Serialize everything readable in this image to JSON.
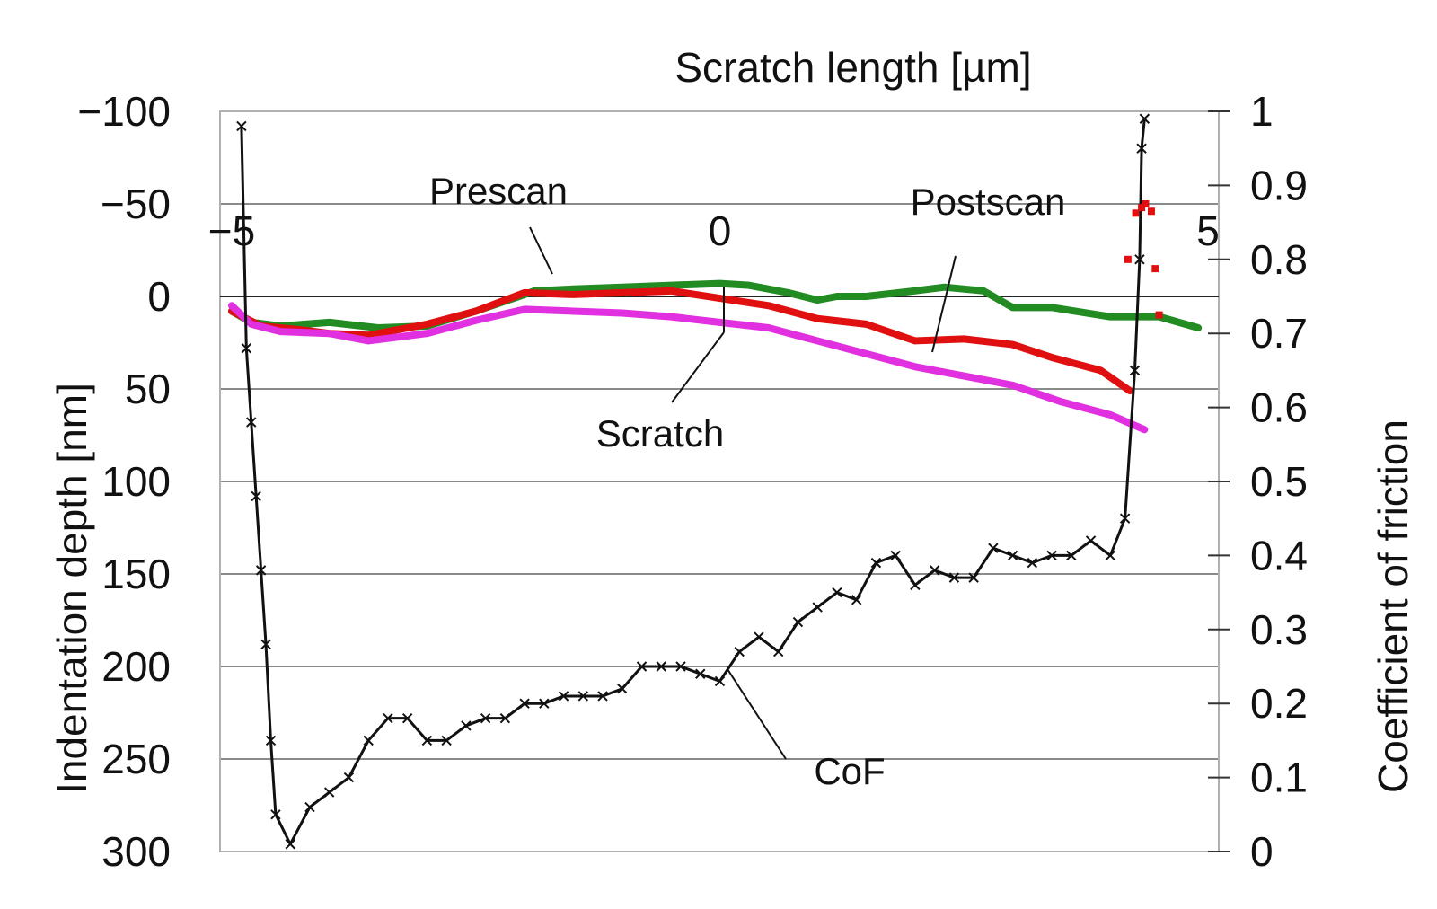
{
  "chart_data": {
    "type": "line",
    "title": "",
    "xlabel": "Scratch length [µm]",
    "ylabel": "Indentation depth [nm]",
    "y2label": "Coefficient of friction",
    "xlim": [
      -5,
      5
    ],
    "ylim": [
      -100,
      300
    ],
    "ylim_inverted": true,
    "y2lim": [
      0,
      1
    ],
    "x_ticks": [
      -5,
      0,
      5
    ],
    "x_tick_labels": [
      "−5",
      "0",
      "5"
    ],
    "y_ticks": [
      -100,
      -50,
      0,
      50,
      100,
      150,
      200,
      250,
      300
    ],
    "y_tick_labels": [
      "−100",
      "−50",
      "0",
      "50",
      "100",
      "150",
      "200",
      "250",
      "300"
    ],
    "y2_ticks": [
      0,
      0.1,
      0.2,
      0.3,
      0.4,
      0.5,
      0.6,
      0.7,
      0.8,
      0.9,
      1
    ],
    "y2_tick_labels": [
      "0",
      "0.1",
      "0.2",
      "0.3",
      "0.4",
      "0.5",
      "0.6",
      "0.7",
      "0.8",
      "0.9",
      "1"
    ],
    "grid": true,
    "series": [
      {
        "name": "Prescan",
        "axis": "left",
        "color": "#228B22",
        "x": [
          -5.0,
          -4.8,
          -4.5,
          -4.0,
          -3.5,
          -3.0,
          -2.5,
          -2.0,
          -1.9,
          -1.5,
          -1.0,
          -0.5,
          0.0,
          0.3,
          0.7,
          1.0,
          1.2,
          1.5,
          2.0,
          2.3,
          2.7,
          3.0,
          3.4,
          4.0,
          4.5,
          4.9
        ],
        "y": [
          8,
          14,
          16,
          14,
          17,
          16,
          8,
          -1,
          -3,
          -4,
          -5,
          -6,
          -7,
          -6,
          -2,
          2,
          0,
          0,
          -3,
          -5,
          -3,
          6,
          6,
          11,
          11,
          17
        ]
      },
      {
        "name": "Scratch",
        "axis": "left",
        "color": "#E01010",
        "x": [
          -5.0,
          -4.7,
          -4.3,
          -4.0,
          -3.6,
          -3.0,
          -2.5,
          -2.0,
          -1.5,
          -1.0,
          -0.5,
          0.0,
          0.5,
          1.0,
          1.5,
          2.0,
          2.5,
          3.0,
          3.4,
          3.9,
          4.2
        ],
        "y": [
          8,
          16,
          18,
          20,
          21,
          15,
          8,
          -2,
          -1,
          -2,
          -3,
          1,
          5,
          12,
          15,
          24,
          23,
          26,
          33,
          40,
          51
        ]
      },
      {
        "name": "Postscan",
        "axis": "left",
        "color": "#E030E0",
        "x": [
          -5.0,
          -4.8,
          -4.5,
          -4.0,
          -3.6,
          -3.0,
          -2.5,
          -2.0,
          -1.5,
          -1.0,
          -0.5,
          0.0,
          0.5,
          1.0,
          1.5,
          2.0,
          2.5,
          3.0,
          3.5,
          4.0,
          4.35
        ],
        "y": [
          5,
          15,
          19,
          20,
          24,
          20,
          13,
          7,
          8,
          9,
          11,
          14,
          17,
          24,
          31,
          38,
          43,
          48,
          57,
          64,
          72
        ]
      },
      {
        "name": "CoF",
        "axis": "right",
        "color": "#111111",
        "marker": "x",
        "x": [
          -4.9,
          -4.85,
          -4.8,
          -4.75,
          -4.7,
          -4.65,
          -4.6,
          -4.55,
          -4.4,
          -4.2,
          -4.0,
          -3.8,
          -3.6,
          -3.4,
          -3.2,
          -3.0,
          -2.8,
          -2.6,
          -2.4,
          -2.2,
          -2.0,
          -1.8,
          -1.6,
          -1.4,
          -1.2,
          -1.0,
          -0.8,
          -0.6,
          -0.4,
          -0.2,
          0.0,
          0.2,
          0.4,
          0.6,
          0.8,
          1.0,
          1.2,
          1.4,
          1.6,
          1.8,
          2.0,
          2.2,
          2.4,
          2.6,
          2.8,
          3.0,
          3.2,
          3.4,
          3.6,
          3.8,
          4.0,
          4.15,
          4.25,
          4.3,
          4.32,
          4.35
        ],
        "y": [
          0.98,
          0.68,
          0.58,
          0.48,
          0.38,
          0.28,
          0.15,
          0.05,
          0.01,
          0.06,
          0.08,
          0.1,
          0.15,
          0.18,
          0.18,
          0.15,
          0.15,
          0.17,
          0.18,
          0.18,
          0.2,
          0.2,
          0.21,
          0.21,
          0.21,
          0.22,
          0.25,
          0.25,
          0.25,
          0.24,
          0.23,
          0.27,
          0.29,
          0.27,
          0.31,
          0.33,
          0.35,
          0.34,
          0.39,
          0.4,
          0.36,
          0.38,
          0.37,
          0.37,
          0.41,
          0.4,
          0.39,
          0.4,
          0.4,
          0.42,
          0.4,
          0.45,
          0.65,
          0.8,
          0.95,
          0.99
        ]
      },
      {
        "name": "",
        "axis": "left",
        "color": "#E01010",
        "marker": "dot",
        "x": [
          4.18,
          4.26,
          4.32,
          4.36,
          4.42,
          4.46,
          4.5
        ],
        "y": [
          -20,
          -45,
          -48,
          -50,
          -46,
          -15,
          10
        ]
      }
    ],
    "annotations": [
      "Prescan",
      "Postscan",
      "Scratch",
      "CoF"
    ]
  }
}
